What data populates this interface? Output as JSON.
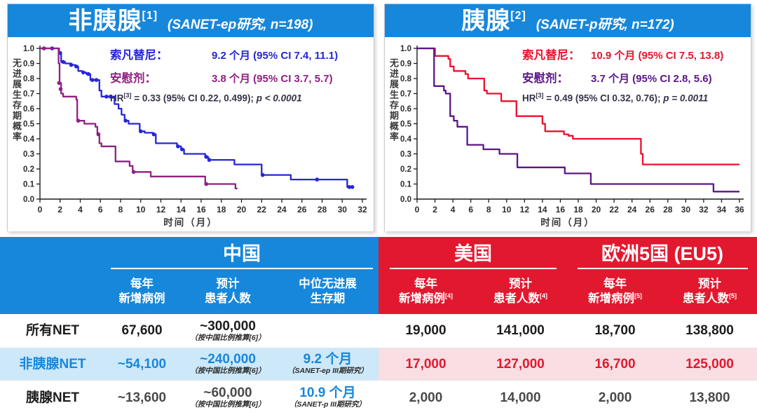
{
  "theme": {
    "blue": "#1787DB",
    "red": "#E2182F",
    "light_blue": "#CDE8F9",
    "light_pink": "#F9DEE3",
    "hr_text": "#333348"
  },
  "panels": [
    {
      "title": "非胰腺",
      "title_sup": "[1]",
      "subtitle": "(SANET-ep研究, n=198)"
    },
    {
      "title": "胰腺",
      "title_sup": "[2]",
      "subtitle": "(SANET-p研究, n=172)"
    }
  ],
  "chart_data": [
    {
      "type": "line",
      "subtype": "kaplan-meier-step",
      "title": "非胰腺 (SANET-ep研究, n=198)",
      "xlabel": "时间（月）",
      "ylabel": "无进展生存期概率",
      "xlim": [
        0,
        32
      ],
      "xtick_step": 2,
      "ylim": [
        0,
        1
      ],
      "ytick_step": 0.1,
      "grid": false,
      "legend_position": "top-right-inside",
      "series": [
        {
          "name": "索凡替尼",
          "color": "#2626D8",
          "median_months": 9.2,
          "ci": "95% CI 7.4, 11.1",
          "steps": [
            [
              0,
              1.0
            ],
            [
              1.9,
              0.97
            ],
            [
              2.1,
              0.91
            ],
            [
              2.5,
              0.9
            ],
            [
              3.1,
              0.89
            ],
            [
              3.5,
              0.88
            ],
            [
              3.8,
              0.85
            ],
            [
              4.2,
              0.84
            ],
            [
              4.6,
              0.83
            ],
            [
              5.0,
              0.79
            ],
            [
              5.9,
              0.72
            ],
            [
              6.1,
              0.68
            ],
            [
              7.4,
              0.63
            ],
            [
              7.8,
              0.6
            ],
            [
              8.1,
              0.56
            ],
            [
              8.4,
              0.52
            ],
            [
              8.8,
              0.5
            ],
            [
              9.9,
              0.45
            ],
            [
              10.4,
              0.44
            ],
            [
              11.2,
              0.43
            ],
            [
              11.5,
              0.37
            ],
            [
              13.6,
              0.35
            ],
            [
              14.0,
              0.33
            ],
            [
              14.3,
              0.3
            ],
            [
              16.4,
              0.28
            ],
            [
              16.7,
              0.26
            ],
            [
              19.3,
              0.23
            ],
            [
              22.0,
              0.16
            ],
            [
              24.9,
              0.13
            ],
            [
              30.5,
              0.08
            ],
            [
              31.0,
              0.08
            ]
          ],
          "censor_marks": [
            [
              0.4,
              1.0
            ],
            [
              1.2,
              1.0
            ],
            [
              2.0,
              0.97
            ],
            [
              2.3,
              0.91
            ],
            [
              3.1,
              0.89
            ],
            [
              3.6,
              0.88
            ],
            [
              4.3,
              0.84
            ],
            [
              4.8,
              0.83
            ],
            [
              5.2,
              0.79
            ],
            [
              5.6,
              0.79
            ],
            [
              6.6,
              0.68
            ],
            [
              7.0,
              0.68
            ],
            [
              8.5,
              0.52
            ],
            [
              10.0,
              0.45
            ],
            [
              11.3,
              0.43
            ],
            [
              13.7,
              0.35
            ],
            [
              14.1,
              0.33
            ],
            [
              16.5,
              0.28
            ],
            [
              16.8,
              0.26
            ],
            [
              22.1,
              0.16
            ],
            [
              27.5,
              0.13
            ],
            [
              30.7,
              0.08
            ],
            [
              31.0,
              0.08
            ]
          ]
        },
        {
          "name": "安慰剂",
          "color": "#8F2084",
          "median_months": 3.8,
          "ci": "95% CI 3.7, 5.7",
          "steps": [
            [
              0,
              1.0
            ],
            [
              1.85,
              0.9
            ],
            [
              1.95,
              0.77
            ],
            [
              2.1,
              0.7
            ],
            [
              2.3,
              0.68
            ],
            [
              3.6,
              0.66
            ],
            [
              3.7,
              0.52
            ],
            [
              4.4,
              0.5
            ],
            [
              5.5,
              0.48
            ],
            [
              5.7,
              0.43
            ],
            [
              5.9,
              0.37
            ],
            [
              6.1,
              0.35
            ],
            [
              7.5,
              0.25
            ],
            [
              8.9,
              0.22
            ],
            [
              9.2,
              0.18
            ],
            [
              11.0,
              0.15
            ],
            [
              16.4,
              0.1
            ],
            [
              19.4,
              0.07
            ],
            [
              19.6,
              0.07
            ]
          ],
          "censor_marks": [
            [
              0.4,
              1.0
            ],
            [
              1.9,
              0.77
            ],
            [
              2.05,
              0.73
            ],
            [
              3.8,
              0.52
            ],
            [
              5.8,
              0.43
            ],
            [
              9.3,
              0.18
            ],
            [
              16.5,
              0.1
            ]
          ]
        }
      ],
      "legend": {
        "rows": [
          {
            "label": "索凡替尼：",
            "value": "9.2 个月 (95% CI 7.4, 11.1)"
          },
          {
            "label": "安慰剂：",
            "value": "3.8 个月 (95% CI 3.7, 5.7)"
          }
        ],
        "hr_prefix": "HR",
        "hr_sup": "[3]",
        "hr_body": " = 0.33 (95% CI 0.22, 0.499); ",
        "hr_p": "p < 0.0001"
      }
    },
    {
      "type": "line",
      "subtype": "kaplan-meier-step",
      "title": "胰腺 (SANET-p研究, n=172)",
      "xlabel": "时间（月）",
      "ylabel": "无进展生存期概率",
      "xlim": [
        0,
        36
      ],
      "xtick_step": 2,
      "ylim": [
        0,
        1
      ],
      "ytick_step": 0.1,
      "grid": false,
      "legend_position": "top-right-inside",
      "series": [
        {
          "name": "索凡替尼",
          "color": "#E8132C",
          "median_months": 10.9,
          "ci": "95% CI 7.5, 13.8",
          "steps": [
            [
              0,
              1.0
            ],
            [
              2.0,
              0.95
            ],
            [
              3.5,
              0.93
            ],
            [
              3.7,
              0.88
            ],
            [
              4.1,
              0.85
            ],
            [
              5.4,
              0.83
            ],
            [
              5.7,
              0.8
            ],
            [
              7.5,
              0.72
            ],
            [
              7.8,
              0.7
            ],
            [
              9.4,
              0.65
            ],
            [
              11.1,
              0.55
            ],
            [
              14.0,
              0.5
            ],
            [
              14.3,
              0.45
            ],
            [
              16.4,
              0.43
            ],
            [
              16.9,
              0.42
            ],
            [
              17.4,
              0.4
            ],
            [
              25.0,
              0.3
            ],
            [
              25.2,
              0.23
            ],
            [
              36,
              0.23
            ]
          ],
          "censor_marks": []
        },
        {
          "name": "安慰剂",
          "color": "#5B1687",
          "median_months": 3.7,
          "ci": "95% CI 2.8, 5.6",
          "steps": [
            [
              0,
              1.0
            ],
            [
              1.9,
              0.75
            ],
            [
              3.0,
              0.72
            ],
            [
              3.2,
              0.7
            ],
            [
              3.7,
              0.55
            ],
            [
              4.1,
              0.52
            ],
            [
              4.5,
              0.48
            ],
            [
              5.6,
              0.36
            ],
            [
              7.4,
              0.33
            ],
            [
              9.2,
              0.3
            ],
            [
              11.2,
              0.21
            ],
            [
              16.5,
              0.17
            ],
            [
              19.4,
              0.1
            ],
            [
              33.1,
              0.05
            ],
            [
              36,
              0.05
            ]
          ],
          "censor_marks": []
        }
      ],
      "legend": {
        "rows": [
          {
            "label": "索凡替尼：",
            "value": "10.9 个月 (95% CI 7.5, 13.8)"
          },
          {
            "label": "安慰剂：",
            "value": "3.7 个月 (95% CI 2.8, 5.6)"
          }
        ],
        "hr_prefix": "HR",
        "hr_sup": "[3]",
        "hr_body": " = 0.49 (95% CI 0.32, 0.76); ",
        "hr_p": "p = 0.0011"
      }
    }
  ],
  "table": {
    "groups": [
      {
        "name": "中国"
      },
      {
        "name": "美国"
      },
      {
        "name": "欧洲5国 (EU5)"
      }
    ],
    "columns": [
      {
        "line1": "每年",
        "line2": "新增病例",
        "sup": ""
      },
      {
        "line1": "预计",
        "line2": "患者人数",
        "sup": ""
      },
      {
        "line1": "中位无进展",
        "line2": "生存期",
        "sup": ""
      },
      {
        "line1": "每年",
        "line2": "新增病例",
        "sup": "[4]"
      },
      {
        "line1": "预计",
        "line2": "患者人数",
        "sup": "[4]"
      },
      {
        "line1": "每年",
        "line2": "新增病例",
        "sup": "[5]"
      },
      {
        "line1": "预计",
        "line2": "患者人数",
        "sup": "[5]"
      }
    ],
    "rows": [
      {
        "label": "所有NET",
        "china_new": "67,600",
        "china_est": "~300,000",
        "china_est_note": "（按中国比例推算[6]）",
        "pfs": "",
        "pfs_note": "",
        "us_new": "19,000",
        "us_est": "141,000",
        "eu_new": "18,700",
        "eu_est": "138,800"
      },
      {
        "label": "非胰腺NET",
        "china_new": "~54,100",
        "china_est": "~240,000",
        "china_est_note": "（按中国比例推算[6]）",
        "pfs": "9.2 个月",
        "pfs_note": "（SANET-ep III期研究）",
        "us_new": "17,000",
        "us_est": "127,000",
        "eu_new": "16,700",
        "eu_est": "125,000"
      },
      {
        "label": "胰腺NET",
        "china_new": "~13,600",
        "china_est": "~60,000",
        "china_est_note": "（按中国比例推算[6]）",
        "pfs": "10.9 个月",
        "pfs_note": "（SANET-p III期研究）",
        "us_new": "2,000",
        "us_est": "14,000",
        "eu_new": "2,000",
        "eu_est": "13,800"
      }
    ]
  }
}
